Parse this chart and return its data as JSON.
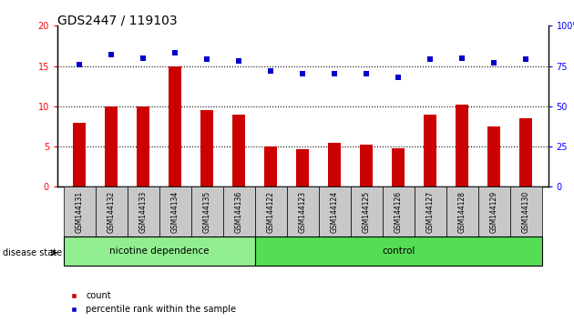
{
  "title": "GDS2447 / 119103",
  "categories": [
    "GSM144131",
    "GSM144132",
    "GSM144133",
    "GSM144134",
    "GSM144135",
    "GSM144136",
    "GSM144122",
    "GSM144123",
    "GSM144124",
    "GSM144125",
    "GSM144126",
    "GSM144127",
    "GSM144128",
    "GSM144129",
    "GSM144130"
  ],
  "bar_values": [
    8,
    10,
    10,
    15,
    9.5,
    9,
    5,
    4.7,
    5.5,
    5.2,
    4.8,
    9,
    10.2,
    7.5,
    8.5
  ],
  "dot_values": [
    76,
    82,
    80,
    83,
    79,
    78,
    72,
    70,
    70,
    70,
    68,
    79,
    80,
    77,
    79
  ],
  "group1_label": "nicotine dependence",
  "group2_label": "control",
  "group1_count": 6,
  "group2_count": 9,
  "bar_color": "#cc0000",
  "dot_color": "#0000cc",
  "yleft_min": 0,
  "yleft_max": 20,
  "yright_min": 0,
  "yright_max": 100,
  "yticks_left": [
    0,
    5,
    10,
    15,
    20
  ],
  "yticks_right": [
    0,
    25,
    50,
    75,
    100
  ],
  "legend_count_label": "count",
  "legend_pct_label": "percentile rank within the sample",
  "group1_bg": "#90ee90",
  "group2_bg": "#55dd55",
  "xlabel_bg": "#c8c8c8",
  "title_fontsize": 10,
  "tick_fontsize": 7,
  "bar_width": 0.4
}
